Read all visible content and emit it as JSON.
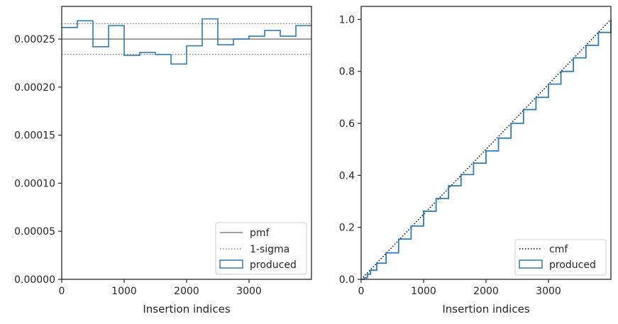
{
  "chart_data": [
    {
      "type": "step",
      "xlabel": "Insertion indices",
      "ylabel": "",
      "xlim": [
        0,
        4000
      ],
      "ylim": [
        0,
        0.000284
      ],
      "xticks": [
        "0",
        "1000",
        "2000",
        "3000"
      ],
      "yticks": [
        "0.00000",
        "0.00005",
        "0.00010",
        "0.00015",
        "0.00020",
        "0.00025"
      ],
      "reference_lines": [
        {
          "name": "pmf",
          "y": 0.00025,
          "style": "solid",
          "color": "#808080"
        },
        {
          "name": "1-sigma",
          "y": [
            0.000234,
            0.000266
          ],
          "style": "dotted",
          "color": "#808080"
        }
      ],
      "series": [
        {
          "name": "produced",
          "color": "#2e7bb4",
          "bin_edges": [
            0,
            250,
            500,
            750,
            1000,
            1250,
            1500,
            1750,
            2000,
            2250,
            2500,
            2750,
            3000,
            3250,
            3500,
            3750,
            4000
          ],
          "values": [
            0.000262,
            0.000269,
            0.000242,
            0.000264,
            0.000233,
            0.000236,
            0.000234,
            0.000224,
            0.000243,
            0.000271,
            0.000244,
            0.00025,
            0.000253,
            0.000259,
            0.000253,
            0.000264
          ]
        }
      ],
      "legend": {
        "position": "lower-right",
        "entries": [
          "pmf",
          "1-sigma",
          "produced"
        ]
      }
    },
    {
      "type": "line",
      "xlabel": "Insertion indices",
      "ylabel": "",
      "xlim": [
        0,
        4000
      ],
      "ylim": [
        0,
        1.05
      ],
      "xticks": [
        "0",
        "1000",
        "2000",
        "3000"
      ],
      "yticks": [
        "0.0",
        "0.2",
        "0.4",
        "0.6",
        "0.8",
        "1.0"
      ],
      "series": [
        {
          "name": "cmf",
          "style": "dotted",
          "color": "#000000",
          "x": [
            0,
            4000
          ],
          "y": [
            0,
            1.0
          ]
        },
        {
          "name": "produced",
          "style": "step",
          "color": "#2e7bb4",
          "x": [
            0,
            50,
            100,
            150,
            250,
            400,
            600,
            800,
            1000,
            1200,
            1400,
            1600,
            1800,
            2000,
            2200,
            2400,
            2600,
            2800,
            3000,
            3200,
            3400,
            3600,
            3800,
            4000
          ],
          "y": [
            0,
            0.006,
            0.02,
            0.035,
            0.062,
            0.102,
            0.155,
            0.205,
            0.262,
            0.311,
            0.36,
            0.403,
            0.447,
            0.494,
            0.543,
            0.6,
            0.653,
            0.7,
            0.751,
            0.8,
            0.852,
            0.9,
            0.95,
            1.0
          ]
        }
      ],
      "legend": {
        "position": "lower-right",
        "entries": [
          "cmf",
          "produced"
        ]
      }
    }
  ]
}
